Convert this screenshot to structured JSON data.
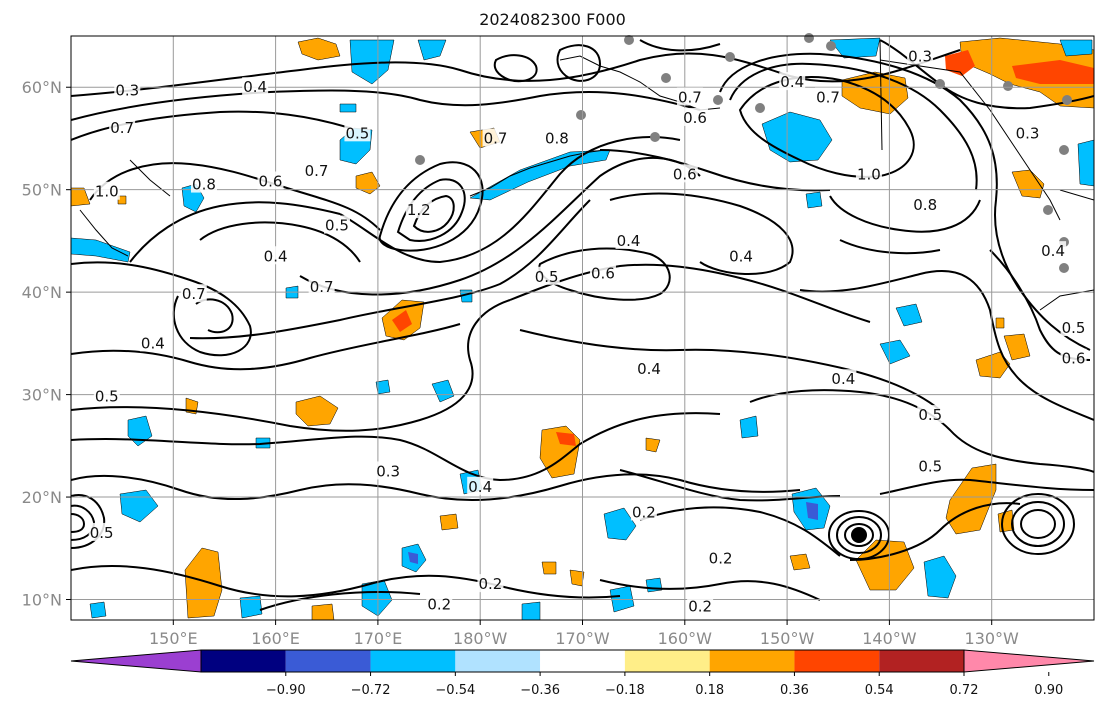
{
  "title": "2024082300 F000",
  "map": {
    "lon_range": [
      140,
      -120
    ],
    "lat_range": [
      8,
      65
    ],
    "grid": true,
    "lat_ticks": [
      {
        "value": 10,
        "label": "10°N"
      },
      {
        "value": 20,
        "label": "20°N"
      },
      {
        "value": 30,
        "label": "30°N"
      },
      {
        "value": 40,
        "label": "40°N"
      },
      {
        "value": 50,
        "label": "50°N"
      },
      {
        "value": 60,
        "label": "60°N"
      }
    ],
    "lon_ticks": [
      {
        "value": 150,
        "label": "150°E"
      },
      {
        "value": 160,
        "label": "160°E"
      },
      {
        "value": 170,
        "label": "170°E"
      },
      {
        "value": 180,
        "label": "180°W"
      },
      {
        "value": 190,
        "label": "170°W"
      },
      {
        "value": 200,
        "label": "160°W"
      },
      {
        "value": 210,
        "label": "150°W"
      },
      {
        "value": 220,
        "label": "140°W"
      },
      {
        "value": 230,
        "label": "130°W"
      }
    ],
    "contour_labels": [
      {
        "text": "0.3",
        "lon": 145.5,
        "lat": 59.7
      },
      {
        "text": "0.4",
        "lon": 158.0,
        "lat": 60.0
      },
      {
        "text": "0.7",
        "lon": 145.0,
        "lat": 56.0
      },
      {
        "text": "1.0",
        "lon": 143.5,
        "lat": 49.8
      },
      {
        "text": "0.8",
        "lon": 153.0,
        "lat": 50.5
      },
      {
        "text": "0.6",
        "lon": 159.5,
        "lat": 50.8
      },
      {
        "text": "0.7",
        "lon": 164.0,
        "lat": 51.8
      },
      {
        "text": "0.5",
        "lon": 168.0,
        "lat": 55.5
      },
      {
        "text": "0.5",
        "lon": 166.0,
        "lat": 46.5
      },
      {
        "text": "0.4",
        "lon": 160.0,
        "lat": 43.5
      },
      {
        "text": "0.7",
        "lon": 164.5,
        "lat": 40.5
      },
      {
        "text": "0.7",
        "lon": 152.0,
        "lat": 39.8
      },
      {
        "text": "0.4",
        "lon": 148.0,
        "lat": 35.0
      },
      {
        "text": "0.5",
        "lon": 143.5,
        "lat": 29.8
      },
      {
        "text": "0.7",
        "lon": 181.5,
        "lat": 55.0
      },
      {
        "text": "0.8",
        "lon": 187.5,
        "lat": 55.0
      },
      {
        "text": "1.2",
        "lon": 174.0,
        "lat": 48.0
      },
      {
        "text": "0.6",
        "lon": 200.0,
        "lat": 51.5
      },
      {
        "text": "0.4",
        "lon": 194.5,
        "lat": 45.0
      },
      {
        "text": "0.4",
        "lon": 205.5,
        "lat": 43.5
      },
      {
        "text": "0.5",
        "lon": 186.5,
        "lat": 41.5
      },
      {
        "text": "0.6",
        "lon": 192.0,
        "lat": 41.8
      },
      {
        "text": "0.4",
        "lon": 196.5,
        "lat": 32.5
      },
      {
        "text": "0.4",
        "lon": 215.5,
        "lat": 31.5
      },
      {
        "text": "0.5",
        "lon": 224.0,
        "lat": 28.0
      },
      {
        "text": "0.3",
        "lon": 171.0,
        "lat": 22.5
      },
      {
        "text": "0.4",
        "lon": 180.0,
        "lat": 21.0
      },
      {
        "text": "0.5",
        "lon": 224.0,
        "lat": 23.0
      },
      {
        "text": "0.2",
        "lon": 196.0,
        "lat": 18.5
      },
      {
        "text": "0.2",
        "lon": 203.5,
        "lat": 14.0
      },
      {
        "text": "0.2",
        "lon": 176.0,
        "lat": 9.5
      },
      {
        "text": "0.2",
        "lon": 181.0,
        "lat": 11.5
      },
      {
        "text": "0.2",
        "lon": 201.5,
        "lat": 9.3
      },
      {
        "text": "1.0",
        "lon": 218.0,
        "lat": 51.5
      },
      {
        "text": "0.8",
        "lon": 223.5,
        "lat": 48.5
      },
      {
        "text": "0.4",
        "lon": 210.5,
        "lat": 60.5
      },
      {
        "text": "0.7",
        "lon": 214.0,
        "lat": 59.0
      },
      {
        "text": "0.3",
        "lon": 223.0,
        "lat": 63.0
      },
      {
        "text": "0.3",
        "lon": 233.5,
        "lat": 55.5
      },
      {
        "text": "0.4",
        "lon": 236.0,
        "lat": 44.0
      },
      {
        "text": "0.5",
        "lon": 238.0,
        "lat": 36.5
      },
      {
        "text": "0.6",
        "lon": 238.0,
        "lat": 33.5
      },
      {
        "text": "0.5",
        "lon": 143.0,
        "lat": 16.5
      },
      {
        "text": "0.7",
        "lon": 200.5,
        "lat": 59.0
      },
      {
        "text": "0.6",
        "lon": 201.0,
        "lat": 57.0
      }
    ]
  },
  "colorbar": {
    "colors": [
      "#9b3fd1",
      "#000080",
      "#3a5bd6",
      "#00bfff",
      "#b0e2ff",
      "#ffffff",
      "#ffee88",
      "#ffa500",
      "#ff4500",
      "#b22222",
      "#ff88aa"
    ],
    "labels": [
      "−0.90",
      "−0.72",
      "−0.54",
      "−0.36",
      "−0.18",
      "0.18",
      "0.36",
      "0.54",
      "0.72",
      "0.90"
    ],
    "extend": "both"
  },
  "colors": {
    "positive_fill": "#ffa500",
    "positive_strong": "#ff4500",
    "negative_fill": "#00bfff",
    "negative_strong": "#3a5bd6",
    "contour": "#000000",
    "station": "#808080"
  }
}
